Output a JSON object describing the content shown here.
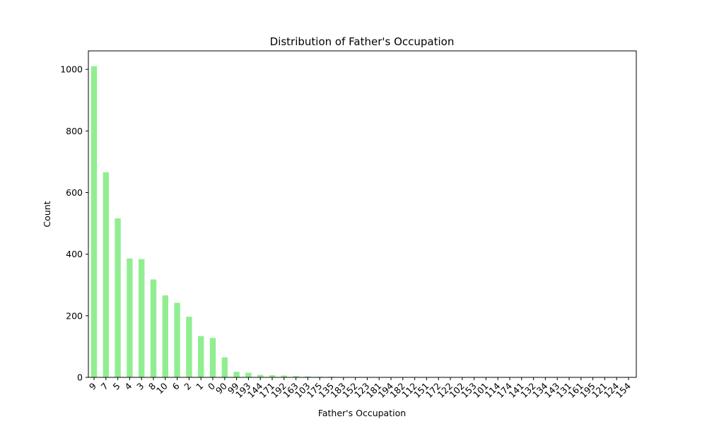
{
  "chart_data": {
    "type": "bar",
    "title": "Distribution of Father's Occupation",
    "xlabel": "Father's Occupation",
    "ylabel": "Count",
    "ylim": [
      0,
      1060
    ],
    "yticks": [
      0,
      200,
      400,
      600,
      800,
      1000
    ],
    "grid": false,
    "bar_color": "#90ee90",
    "categories": [
      "9",
      "7",
      "5",
      "4",
      "3",
      "8",
      "10",
      "6",
      "2",
      "1",
      "0",
      "90",
      "99",
      "193",
      "144",
      "171",
      "192",
      "163",
      "103",
      "175",
      "135",
      "183",
      "152",
      "123",
      "181",
      "194",
      "182",
      "112",
      "151",
      "172",
      "122",
      "102",
      "153",
      "101",
      "114",
      "174",
      "141",
      "132",
      "134",
      "143",
      "131",
      "161",
      "195",
      "121",
      "124",
      "154"
    ],
    "values": [
      1010,
      666,
      516,
      386,
      384,
      318,
      266,
      242,
      197,
      134,
      128,
      65,
      18,
      15,
      8,
      7,
      6,
      4,
      3,
      2,
      2,
      1,
      1,
      1,
      1,
      1,
      1,
      1,
      1,
      1,
      1,
      1,
      1,
      1,
      1,
      1,
      1,
      1,
      1,
      1,
      1,
      1,
      1,
      1,
      1,
      1
    ]
  }
}
